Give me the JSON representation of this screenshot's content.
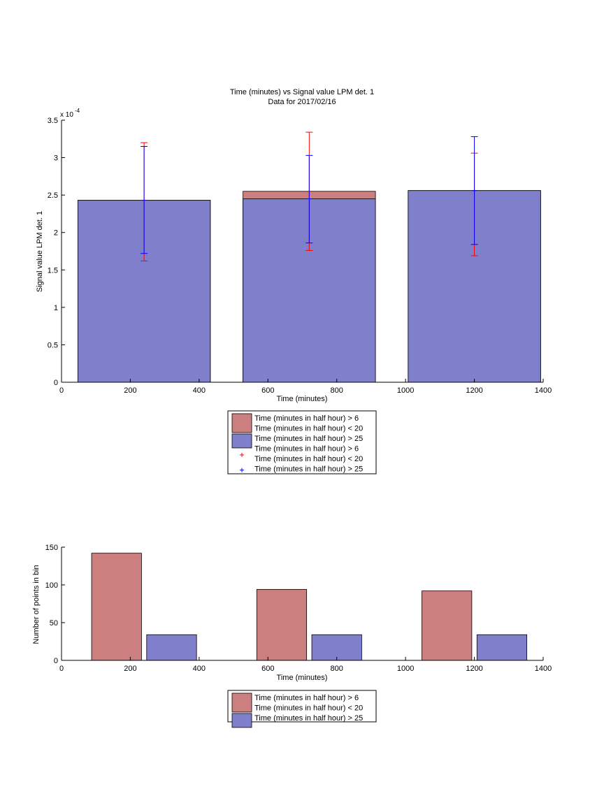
{
  "colors": {
    "red_fill": "#cc7f7f",
    "blue_fill": "#7f7fcc",
    "err_red": "#ff0000",
    "err_blue": "#0000ff",
    "axis": "#000000"
  },
  "chart_data": [
    {
      "type": "bar",
      "title": "Time (minutes) vs Signal value LPM det. 1",
      "subtitle": "Data for 2017/02/16",
      "xlabel": "Time (minutes)",
      "ylabel": "Signal value LPM det. 1",
      "y_exponent_label": "x 10",
      "y_exponent_power": "-4",
      "xlim": [
        0,
        1400
      ],
      "ylim": [
        0,
        3.5
      ],
      "x_ticks": [
        0,
        200,
        400,
        600,
        800,
        1000,
        1200,
        1400
      ],
      "y_ticks": [
        0,
        0.5,
        1,
        1.5,
        2,
        2.5,
        3,
        3.5
      ],
      "y_tick_labels": [
        "0",
        "0.5",
        "1",
        "1.5",
        "2",
        "2.5",
        "3",
        "3.5"
      ],
      "bar_width": 385,
      "x": [
        240,
        720,
        1200
      ],
      "series": [
        {
          "name": "Time (minutes in half hour) > 6\nTime (minutes in half hour) < 20",
          "color_key": "red_fill",
          "values": [
            2.43,
            2.55,
            2.56
          ],
          "error_low": [
            1.62,
            1.76,
            1.69
          ],
          "error_high": [
            3.2,
            3.34,
            3.06
          ]
        },
        {
          "name": "Time (minutes in half hour) > 25",
          "color_key": "blue_fill",
          "values": [
            2.43,
            2.45,
            2.56
          ],
          "error_low": [
            1.72,
            1.86,
            1.84
          ],
          "error_high": [
            3.15,
            3.03,
            3.28
          ]
        }
      ],
      "legend": {
        "placement": "below",
        "entries": [
          {
            "kind": "patch",
            "color_key": "red_fill",
            "lines": [
              "Time (minutes in half hour) > 6",
              "Time (minutes in half hour) < 20"
            ]
          },
          {
            "kind": "patch",
            "color_key": "blue_fill",
            "lines": [
              "Time (minutes in half hour) > 25"
            ]
          },
          {
            "kind": "marker",
            "color_key": "err_red",
            "lines": [
              "Time (minutes in half hour) > 6",
              "Time (minutes in half hour) < 20"
            ]
          },
          {
            "kind": "marker",
            "color_key": "err_blue",
            "lines": [
              "Time (minutes in half hour) > 25"
            ]
          }
        ]
      }
    },
    {
      "type": "bar",
      "title": "",
      "xlabel": "Time (minutes)",
      "ylabel": "Number of points in bin",
      "xlim": [
        0,
        1400
      ],
      "ylim": [
        0,
        150
      ],
      "x_ticks": [
        0,
        200,
        400,
        600,
        800,
        1000,
        1200,
        1400
      ],
      "y_ticks": [
        0,
        50,
        100,
        150
      ],
      "y_tick_labels": [
        "0",
        "50",
        "100",
        "150"
      ],
      "bar_width": 145,
      "series": [
        {
          "name": "Time (minutes in half hour) > 6\nTime (minutes in half hour) < 20",
          "color_key": "red_fill",
          "x": [
            160,
            640,
            1120
          ],
          "values": [
            142,
            94,
            92
          ]
        },
        {
          "name": "Time (minutes in half hour) > 25",
          "color_key": "blue_fill",
          "x": [
            320,
            800,
            1280
          ],
          "values": [
            34,
            34,
            34
          ]
        }
      ],
      "legend": {
        "placement": "below",
        "entries": [
          {
            "kind": "patch",
            "color_key": "red_fill",
            "lines": [
              "Time (minutes in half hour) > 6",
              "Time (minutes in half hour) < 20"
            ]
          },
          {
            "kind": "patch",
            "color_key": "blue_fill",
            "lines": [
              "Time (minutes in half hour) > 25"
            ]
          }
        ]
      }
    }
  ]
}
